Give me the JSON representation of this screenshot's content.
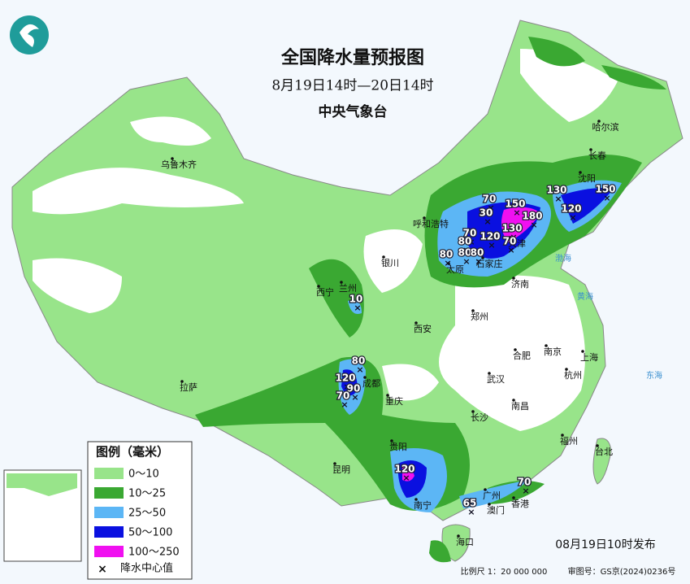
{
  "header": {
    "title": "全国降水量预报图",
    "subtitle": "8月19日14时—20日14时",
    "issuer": "中央气象台"
  },
  "legend": {
    "title": "图例（毫米）",
    "items": [
      {
        "label": "0～10",
        "color": "#98e48a"
      },
      {
        "label": "10～25",
        "color": "#3aa832"
      },
      {
        "label": "25～50",
        "color": "#5cb6f5"
      },
      {
        "label": "50～100",
        "color": "#0a10e0"
      },
      {
        "label": "100～250",
        "color": "#f010f0"
      }
    ],
    "center_label": "降水中心值"
  },
  "cities": [
    "乌鲁木齐",
    "哈尔滨",
    "长春",
    "沈阳",
    "呼和浩特",
    "银川",
    "太原",
    "石家庄",
    "天津",
    "济南",
    "西宁",
    "兰州",
    "西安",
    "郑州",
    "南京",
    "合肥",
    "上海",
    "武汉",
    "杭州",
    "成都",
    "拉萨",
    "重庆",
    "长沙",
    "南昌",
    "福州",
    "台北",
    "贵阳",
    "昆明",
    "南宁",
    "广州",
    "澳门",
    "香港",
    "海口"
  ],
  "seas": [
    "黄海",
    "东海",
    "渤海"
  ],
  "centers": [
    70,
    30,
    150,
    180,
    130,
    70,
    120,
    80,
    80,
    80,
    80,
    70,
    130,
    150,
    120,
    10,
    80,
    120,
    90,
    70,
    120,
    65,
    70
  ],
  "footer": {
    "issued": "08月19日10时发布",
    "scale": "比例尺 1：20 000 000",
    "approval": "审图号：GS京(2024)0236号"
  }
}
